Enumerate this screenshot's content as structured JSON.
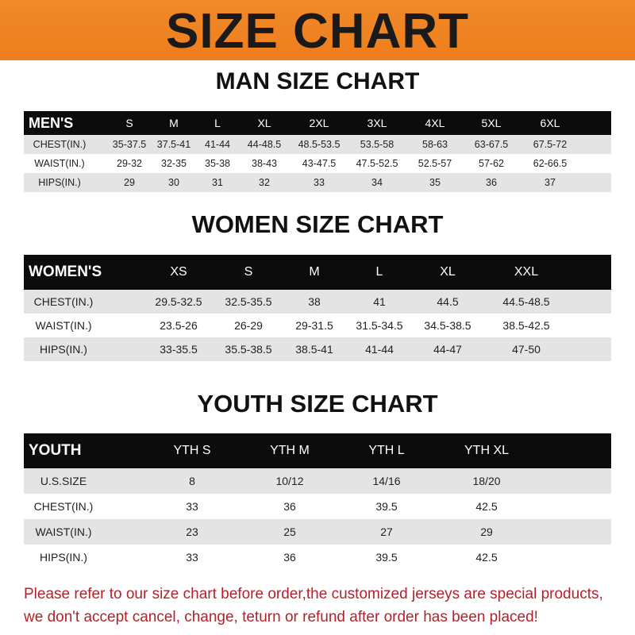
{
  "banner": {
    "title": "SIZE CHART",
    "color": "#ef821f"
  },
  "men": {
    "title": "MAN SIZE CHART",
    "header": [
      "MEN'S",
      "S",
      "M",
      "L",
      "XL",
      "2XL",
      "3XL",
      "4XL",
      "5XL",
      "6XL"
    ],
    "rows": [
      [
        "CHEST(IN.)",
        "35-37.5",
        "37.5-41",
        "41-44",
        "44-48.5",
        "48.5-53.5",
        "53.5-58",
        "58-63",
        "63-67.5",
        "67.5-72"
      ],
      [
        "WAIST(IN.)",
        "29-32",
        "32-35",
        "35-38",
        "38-43",
        "43-47.5",
        "47.5-52.5",
        "52.5-57",
        "57-62",
        "62-66.5"
      ],
      [
        "HIPS(IN.)",
        "29",
        "30",
        "31",
        "32",
        "33",
        "34",
        "35",
        "36",
        "37"
      ]
    ]
  },
  "women": {
    "title": "WOMEN SIZE CHART",
    "header": [
      "WOMEN'S",
      "XS",
      "S",
      "M",
      "L",
      "XL",
      "XXL"
    ],
    "rows": [
      [
        "CHEST(IN.)",
        "29.5-32.5",
        "32.5-35.5",
        "38",
        "41",
        "44.5",
        "44.5-48.5"
      ],
      [
        "WAIST(IN.)",
        "23.5-26",
        "26-29",
        "29-31.5",
        "31.5-34.5",
        "34.5-38.5",
        "38.5-42.5"
      ],
      [
        "HIPS(IN.)",
        "33-35.5",
        "35.5-38.5",
        "38.5-41",
        "41-44",
        "44-47",
        "47-50"
      ]
    ]
  },
  "youth": {
    "title": "YOUTH SIZE CHART",
    "header": [
      "YOUTH",
      "YTH S",
      "YTH M",
      "YTH L",
      "YTH XL"
    ],
    "rows": [
      [
        "U.S.SIZE",
        "8",
        "10/12",
        "14/16",
        "18/20"
      ],
      [
        "CHEST(IN.)",
        "33",
        "36",
        "39.5",
        "42.5"
      ],
      [
        "WAIST(IN.)",
        "23",
        "25",
        "27",
        "29"
      ],
      [
        "HIPS(IN.)",
        "33",
        "36",
        "39.5",
        "42.5"
      ]
    ]
  },
  "notice": {
    "line1": "Please refer to our size chart before order,the customized jerseys are special products,",
    "line2": "we don't accept cancel, change, teturn or refund after order has been placed!",
    "color": "#b3222a"
  }
}
